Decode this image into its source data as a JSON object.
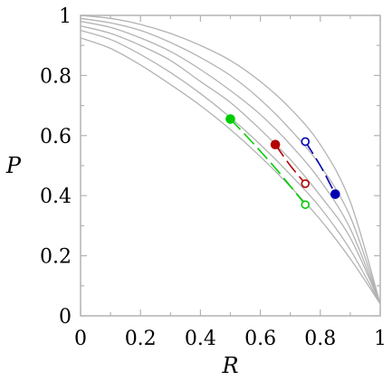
{
  "chart_data": {
    "type": "line",
    "xlabel": "R",
    "ylabel": "P",
    "xlim": [
      0,
      1
    ],
    "ylim": [
      0,
      1
    ],
    "xticks": [
      0,
      0.2,
      0.4,
      0.6,
      0.8,
      1
    ],
    "yticks": [
      0,
      0.2,
      0.4,
      0.6,
      0.8,
      1
    ],
    "xtick_labels": [
      "0",
      "0.2",
      "0.4",
      "0.6",
      "0.8",
      "1"
    ],
    "ytick_labels": [
      "0",
      "0.2",
      "0.4",
      "0.6",
      "0.8",
      "1"
    ],
    "grid": false,
    "background_curves": [
      {
        "color": "#b3b3b3",
        "x": [
          0,
          0.1,
          0.2,
          0.3,
          0.4,
          0.5,
          0.6,
          0.7,
          0.8,
          0.9,
          1.0
        ],
        "y": [
          1.0,
          0.99,
          0.97,
          0.94,
          0.9,
          0.85,
          0.78,
          0.69,
          0.57,
          0.38,
          0.04
        ]
      },
      {
        "color": "#b3b3b3",
        "x": [
          0,
          0.1,
          0.2,
          0.3,
          0.4,
          0.5,
          0.6,
          0.7,
          0.8,
          0.9,
          1.0
        ],
        "y": [
          0.99,
          0.975,
          0.95,
          0.91,
          0.86,
          0.8,
          0.72,
          0.62,
          0.5,
          0.33,
          0.04
        ]
      },
      {
        "color": "#b3b3b3",
        "x": [
          0,
          0.1,
          0.2,
          0.3,
          0.4,
          0.5,
          0.6,
          0.7,
          0.8,
          0.9,
          1.0
        ],
        "y": [
          0.98,
          0.96,
          0.925,
          0.88,
          0.82,
          0.75,
          0.67,
          0.57,
          0.45,
          0.29,
          0.04
        ]
      },
      {
        "color": "#b3b3b3",
        "x": [
          0,
          0.1,
          0.2,
          0.3,
          0.4,
          0.5,
          0.6,
          0.7,
          0.8,
          0.9,
          1.0
        ],
        "y": [
          0.965,
          0.94,
          0.9,
          0.85,
          0.78,
          0.71,
          0.62,
          0.52,
          0.4,
          0.26,
          0.04
        ]
      },
      {
        "color": "#b3b3b3",
        "x": [
          0,
          0.1,
          0.2,
          0.3,
          0.4,
          0.5,
          0.6,
          0.7,
          0.8,
          0.9,
          1.0
        ],
        "y": [
          0.95,
          0.92,
          0.87,
          0.81,
          0.74,
          0.66,
          0.57,
          0.47,
          0.36,
          0.22,
          0.04
        ]
      },
      {
        "color": "#b3b3b3",
        "x": [
          0,
          0.1,
          0.2,
          0.3,
          0.4,
          0.5,
          0.6,
          0.7,
          0.8,
          0.9,
          1.0
        ],
        "y": [
          0.925,
          0.89,
          0.835,
          0.77,
          0.7,
          0.62,
          0.53,
          0.43,
          0.32,
          0.19,
          0.04
        ]
      }
    ],
    "series": [
      {
        "color": "#00cc00",
        "x": [
          0.5,
          0.58,
          0.66,
          0.75
        ],
        "y": [
          0.655,
          0.57,
          0.48,
          0.37
        ],
        "start": {
          "x": 0.5,
          "y": 0.655,
          "filled": true
        },
        "end": {
          "x": 0.75,
          "y": 0.37,
          "filled": false
        }
      },
      {
        "color": "#b30000",
        "x": [
          0.65,
          0.7,
          0.75
        ],
        "y": [
          0.57,
          0.5,
          0.44
        ],
        "start": {
          "x": 0.65,
          "y": 0.57,
          "filled": true
        },
        "end": {
          "x": 0.75,
          "y": 0.44,
          "filled": false
        }
      },
      {
        "color": "#0000b3",
        "x": [
          0.75,
          0.8,
          0.85
        ],
        "y": [
          0.58,
          0.5,
          0.405
        ],
        "start": {
          "x": 0.85,
          "y": 0.405,
          "filled": true
        },
        "end": {
          "x": 0.75,
          "y": 0.58,
          "filled": false
        }
      }
    ]
  }
}
